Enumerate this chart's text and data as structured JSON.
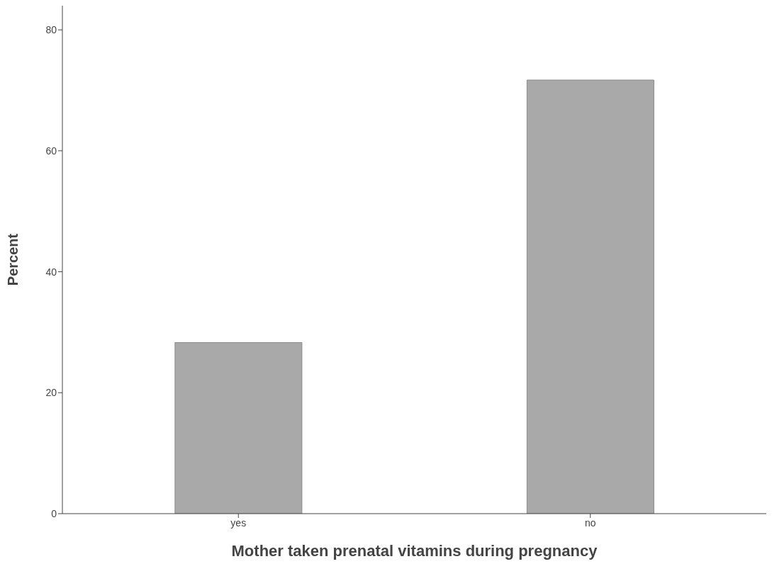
{
  "chart_data": {
    "type": "bar",
    "xlabel": "Mother taken prenatal vitamins during pregnancy",
    "ylabel": "Percent",
    "categories": [
      "yes",
      "no"
    ],
    "values": [
      28.3,
      71.7
    ],
    "color": "#a9a9a9",
    "ylim": [
      0,
      84
    ],
    "yticks": [
      0,
      20,
      40,
      60,
      80
    ],
    "grid": false
  }
}
